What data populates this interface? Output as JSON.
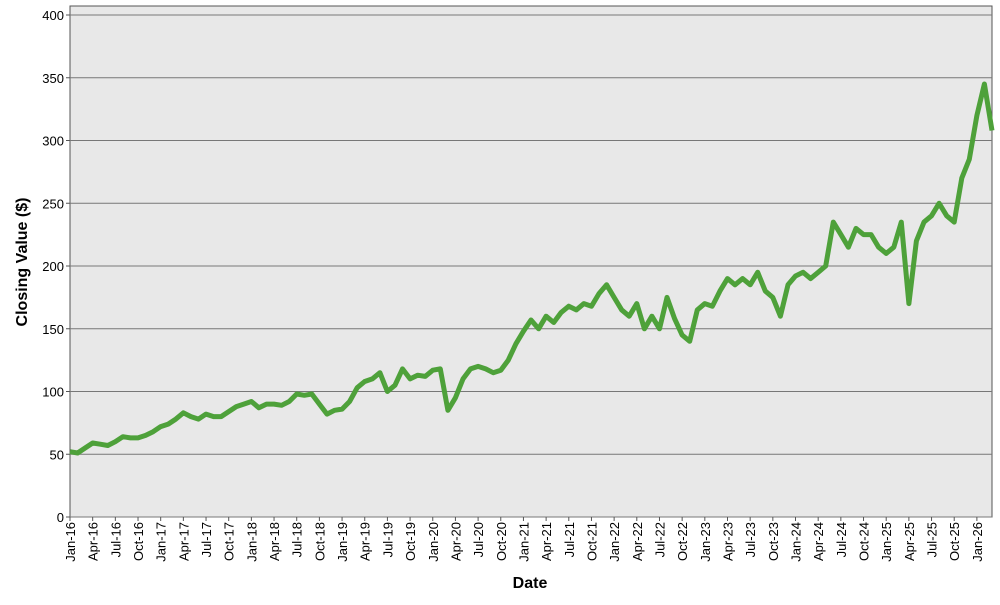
{
  "chart_data": {
    "type": "line",
    "xlabel": "Date",
    "ylabel": "Closing Value ($)",
    "categories": [
      "Jan-16",
      null,
      null,
      "Apr-16",
      null,
      null,
      "Jul-16",
      null,
      null,
      "Oct-16",
      null,
      null,
      "Jan-17",
      null,
      null,
      "Apr-17",
      null,
      null,
      "Jul-17",
      null,
      null,
      "Oct-17",
      null,
      null,
      "Jan-18",
      null,
      null,
      "Apr-18",
      null,
      null,
      "Jul-18",
      null,
      null,
      "Oct-18",
      null,
      null,
      "Jan-19",
      null,
      null,
      "Apr-19",
      null,
      null,
      "Jul-19",
      null,
      null,
      "Oct-19",
      null,
      null,
      "Jan-20",
      null,
      null,
      "Apr-20",
      null,
      null,
      "Jul-20",
      null,
      null,
      "Oct-20",
      null,
      null,
      "Jan-21",
      null,
      null,
      "Apr-21",
      null,
      null,
      "Jul-21",
      null,
      null,
      "Oct-21",
      null,
      null,
      "Jan-22",
      null,
      null,
      "Apr-22",
      null,
      null,
      "Jul-22",
      null,
      null,
      "Oct-22",
      null,
      null,
      "Jan-23",
      null,
      null,
      "Apr-23",
      null,
      null,
      "Jul-23",
      null,
      null,
      "Oct-23",
      null,
      null,
      "Jan-24",
      null,
      null,
      "Apr-24",
      null,
      null,
      "Jul-24",
      null,
      null,
      "Oct-24",
      null,
      null,
      "Jan-25",
      null,
      null,
      "Apr-25",
      null,
      null,
      "Jul-25",
      null,
      null,
      "Oct-25",
      null,
      null,
      "Jan-26",
      null,
      null
    ],
    "values": [
      52,
      51,
      55,
      59,
      58,
      57,
      60,
      64,
      63,
      63,
      65,
      68,
      72,
      74,
      78,
      83,
      80,
      78,
      82,
      80,
      80,
      84,
      88,
      90,
      92,
      87,
      90,
      90,
      89,
      92,
      98,
      97,
      98,
      90,
      82,
      85,
      86,
      92,
      103,
      108,
      110,
      115,
      100,
      105,
      118,
      110,
      113,
      112,
      117,
      118,
      85,
      95,
      110,
      118,
      120,
      118,
      115,
      117,
      125,
      138,
      148,
      157,
      150,
      160,
      155,
      163,
      168,
      165,
      170,
      168,
      178,
      185,
      175,
      165,
      160,
      170,
      150,
      160,
      150,
      175,
      158,
      145,
      140,
      165,
      170,
      168,
      180,
      190,
      185,
      190,
      185,
      195,
      180,
      175,
      160,
      185,
      192,
      195,
      190,
      195,
      200,
      235,
      225,
      215,
      230,
      225,
      225,
      215,
      210,
      215,
      235,
      170,
      220,
      235,
      240,
      250,
      240,
      235,
      270,
      285,
      320,
      345,
      308
    ],
    "color": "#4ea13a",
    "ylim": [
      0,
      400
    ],
    "yticks": [
      0,
      50,
      100,
      150,
      200,
      250,
      300,
      350,
      400
    ],
    "grid": true
  }
}
